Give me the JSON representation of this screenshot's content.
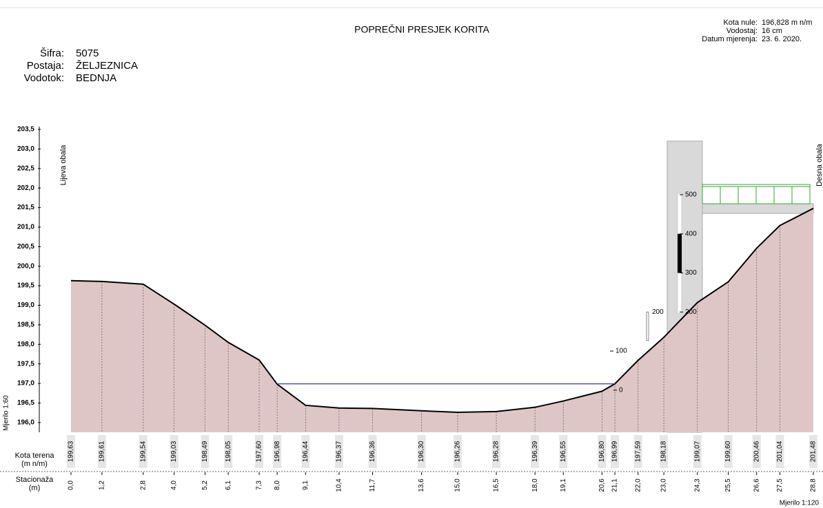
{
  "chart_data": {
    "type": "cross-section",
    "title": "POPREČNI PRESJEK KORITA",
    "info": [
      {
        "label": "Šifra:",
        "value": "5075"
      },
      {
        "label": "Postaja:",
        "value": "ŽELJEZNICA"
      },
      {
        "label": "Vodotok:",
        "value": "BEDNJA"
      }
    ],
    "header": [
      {
        "label": "Kota nule:",
        "value": "196,828 m n/m"
      },
      {
        "label": "Vodostaj:",
        "value": "16 cm"
      },
      {
        "label": "Datum mjerenja:",
        "value": "23. 6. 2020."
      }
    ],
    "left_bank": "Lijeva obala",
    "right_bank": "Desna obala",
    "vertical_scale": "Mjerilo 1:60",
    "horizontal_scale": "Mjerilo 1:120",
    "elevation_row": "Kota terena\n(m n/m)",
    "station_row": "Stacionaža\n(m)",
    "x": [
      0,
      1.2,
      2.8,
      4.0,
      5.2,
      6.1,
      7.3,
      8.0,
      9.1,
      10.4,
      11.7,
      13.6,
      15.0,
      16.5,
      18.0,
      19.1,
      20.6,
      21.1,
      22.0,
      23.0,
      24.3,
      25.5,
      26.6,
      27.5,
      28.8
    ],
    "x_labels": [
      "0,0",
      "1,2",
      "2,8",
      "4,0",
      "5,2",
      "6,1",
      "7,3",
      "8,0",
      "9,1",
      "10,4",
      "11,7",
      "13,6",
      "15,0",
      "16,5",
      "18,0",
      "19,1",
      "20,6",
      "21,1",
      "22,0",
      "23,0",
      "24,3",
      "25,5",
      "26,6",
      "27,5",
      "28,8"
    ],
    "values": [
      199.63,
      199.61,
      199.54,
      199.03,
      198.49,
      198.05,
      197.6,
      196.98,
      196.44,
      196.37,
      196.36,
      196.3,
      196.26,
      196.28,
      196.39,
      196.55,
      196.8,
      196.99,
      197.59,
      198.18,
      199.07,
      199.6,
      200.46,
      201.04,
      201.48
    ],
    "value_labels": [
      "199,63",
      "199,61",
      "199,54",
      "199,03",
      "198,49",
      "198,05",
      "197,60",
      "196,98",
      "196,44",
      "196,37",
      "196,36",
      "196,30",
      "196,26",
      "196,28",
      "196,39",
      "196,55",
      "196,80",
      "196,99",
      "197,59",
      "198,18",
      "199,07",
      "199,60",
      "200,46",
      "201,04",
      "201,48"
    ],
    "color": "#dfc6c6",
    "water_level": 196.99,
    "water_color": "#3a3aa0",
    "xlim": [
      0,
      28.8
    ],
    "ylim": [
      195.75,
      203.5
    ],
    "yticks": [
      {
        "value": 196.0,
        "label": "196,0"
      },
      {
        "value": 196.5,
        "label": "196,5"
      },
      {
        "value": 197.0,
        "label": "197,0"
      },
      {
        "value": 197.5,
        "label": "197,5"
      },
      {
        "value": 198.0,
        "label": "198,0"
      },
      {
        "value": 198.5,
        "label": "198,5"
      },
      {
        "value": 199.0,
        "label": "199,0"
      },
      {
        "value": 199.5,
        "label": "199,5"
      },
      {
        "value": 200.0,
        "label": "200,0"
      },
      {
        "value": 200.5,
        "label": "200,5"
      },
      {
        "value": 201.0,
        "label": "201,0"
      },
      {
        "value": 201.5,
        "label": "201,5"
      },
      {
        "value": 202.0,
        "label": "202,0"
      },
      {
        "value": 202.5,
        "label": "202,5"
      },
      {
        "value": 203.0,
        "label": "203,0"
      },
      {
        "value": 203.5,
        "label": "203,5"
      }
    ],
    "gauge_zero": 196.828,
    "gauge_ticks": [
      500,
      400,
      300,
      200,
      100,
      0
    ],
    "gauge_post_tick": 200
  }
}
